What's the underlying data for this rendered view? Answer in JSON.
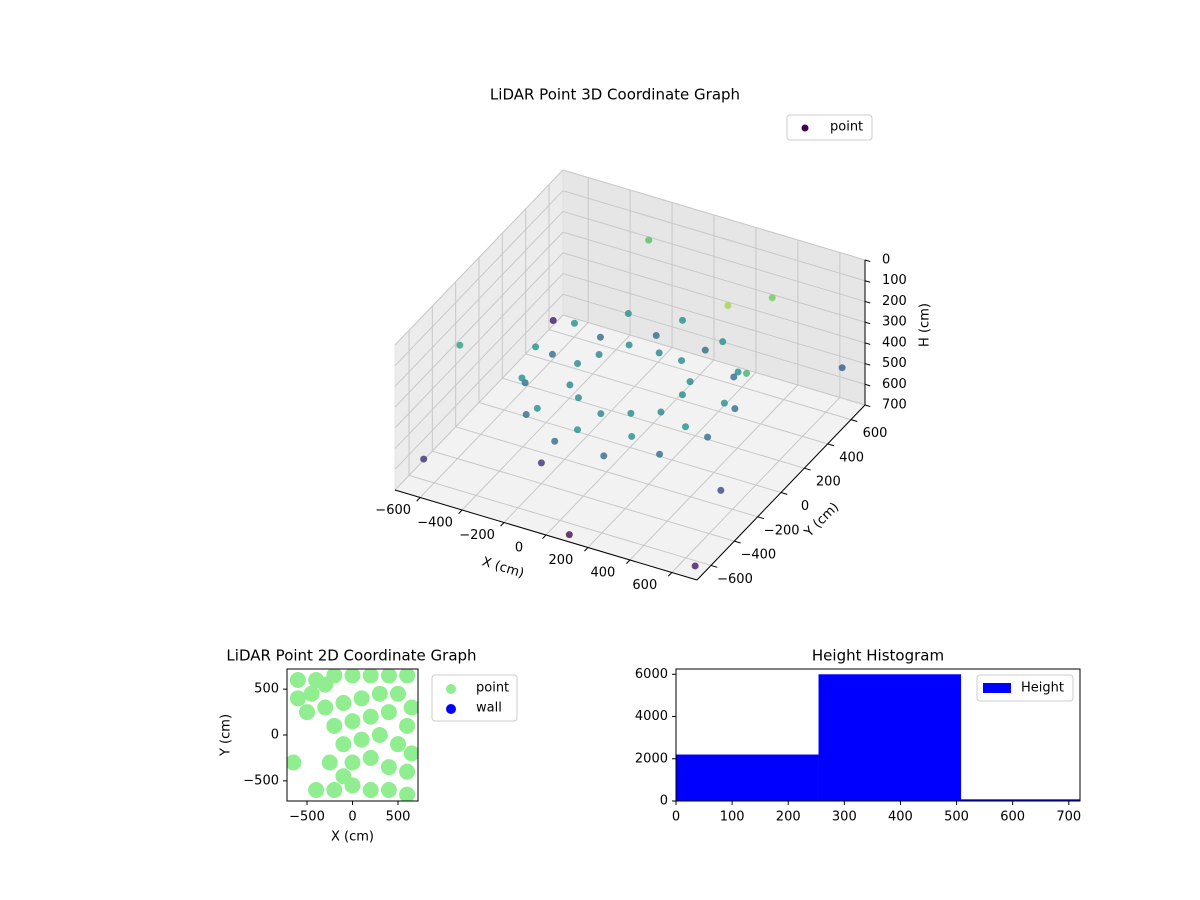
{
  "chart_data": [
    {
      "type": "scatter3d",
      "title": "LiDAR Point 3D Coordinate Graph",
      "xlabel": "X (cm)",
      "ylabel": "Y (cm)",
      "zlabel": "H (cm)",
      "xlim": [
        -720,
        720
      ],
      "ylim": [
        -720,
        720
      ],
      "zlim": [
        700,
        0
      ],
      "xticks": [
        {
          "value": -600,
          "label": "−600"
        },
        {
          "value": -400,
          "label": "−400"
        },
        {
          "value": -200,
          "label": "−200"
        },
        0,
        200,
        400,
        600
      ],
      "yticks": [
        {
          "value": -600,
          "label": "−600"
        },
        {
          "value": -400,
          "label": "−400"
        },
        {
          "value": -200,
          "label": "−200"
        },
        0,
        200,
        400,
        600
      ],
      "zticks": [
        0,
        100,
        200,
        300,
        400,
        500,
        600,
        700
      ],
      "colormap": "viridis",
      "grid": true,
      "legend": "upper right",
      "series": [
        {
          "name": "point",
          "color": "#440154",
          "x": [
            450,
            435,
            390,
            318,
            225,
            117,
            0,
            -117,
            -225,
            -318,
            -390,
            -435,
            -450,
            -435,
            -390,
            -318,
            -225,
            -117,
            0,
            117,
            225,
            318,
            390,
            435,
            250,
            217,
            125,
            0,
            -125,
            -217,
            -250,
            -217,
            -125,
            0,
            125,
            217,
            -700,
            700,
            650,
            -650,
            100,
            -300,
            400,
            -700,
            600,
            300,
            -200,
            500
          ],
          "y": [
            0,
            117,
            225,
            318,
            390,
            435,
            450,
            435,
            390,
            318,
            225,
            117,
            0,
            -117,
            -225,
            -318,
            -390,
            -435,
            -450,
            -435,
            -390,
            -318,
            -225,
            -117,
            0,
            125,
            217,
            250,
            217,
            125,
            0,
            -125,
            -217,
            -250,
            -217,
            -125,
            600,
            -700,
            650,
            -600,
            -700,
            700,
            500,
            -200,
            -300,
            300,
            -400,
            100
          ],
          "z": [
            350,
            450,
            350,
            450,
            350,
            450,
            350,
            450,
            350,
            450,
            350,
            450,
            350,
            450,
            350,
            450,
            350,
            450,
            350,
            450,
            350,
            450,
            350,
            450,
            370,
            390,
            370,
            390,
            370,
            390,
            370,
            390,
            370,
            390,
            370,
            390,
            650,
            650,
            500,
            600,
            680,
            200,
            150,
            300,
            550,
            100,
            600,
            250
          ]
        }
      ]
    },
    {
      "type": "scatter",
      "title": "LiDAR Point 2D Coordinate Graph",
      "xlabel": "X (cm)",
      "ylabel": "Y (cm)",
      "xlim": [
        -720,
        720
      ],
      "ylim": [
        -720,
        720
      ],
      "xticks": [
        {
          "value": -500,
          "label": "−500"
        },
        0,
        500
      ],
      "yticks": [
        {
          "value": -500,
          "label": "−500"
        },
        0,
        500
      ],
      "legend": "outside right",
      "series": [
        {
          "name": "point",
          "color": "#90ee90",
          "x": [
            -600,
            -400,
            -600,
            -450,
            -300,
            -200,
            0,
            200,
            400,
            600,
            -500,
            -300,
            -100,
            100,
            300,
            500,
            650,
            -200,
            0,
            200,
            400,
            600,
            -100,
            100,
            300,
            500,
            650,
            -250,
            -650,
            0,
            200,
            400,
            600,
            -400,
            -200,
            0,
            200,
            400,
            600,
            -100
          ],
          "y": [
            600,
            600,
            400,
            450,
            550,
            650,
            650,
            650,
            650,
            650,
            250,
            300,
            350,
            400,
            450,
            450,
            300,
            100,
            150,
            200,
            250,
            100,
            -100,
            -50,
            0,
            -100,
            -200,
            -300,
            -300,
            -300,
            -250,
            -350,
            -400,
            -600,
            -600,
            -550,
            -600,
            -600,
            -650,
            -450
          ]
        },
        {
          "name": "wall",
          "color": "#0000ff",
          "x": [],
          "y": []
        }
      ]
    },
    {
      "type": "histogram",
      "title": "Height Histogram",
      "bins": [
        0,
        254,
        508,
        762
      ],
      "values": [
        2200,
        6000,
        80
      ],
      "xlim": [
        0,
        720
      ],
      "ylim": [
        0,
        6250
      ],
      "xticks": [
        0,
        100,
        200,
        300,
        400,
        500,
        600,
        700
      ],
      "yticks": [
        0,
        2000,
        4000,
        6000
      ],
      "name": "Height",
      "color": "#0000ff",
      "legend": "upper right"
    }
  ]
}
